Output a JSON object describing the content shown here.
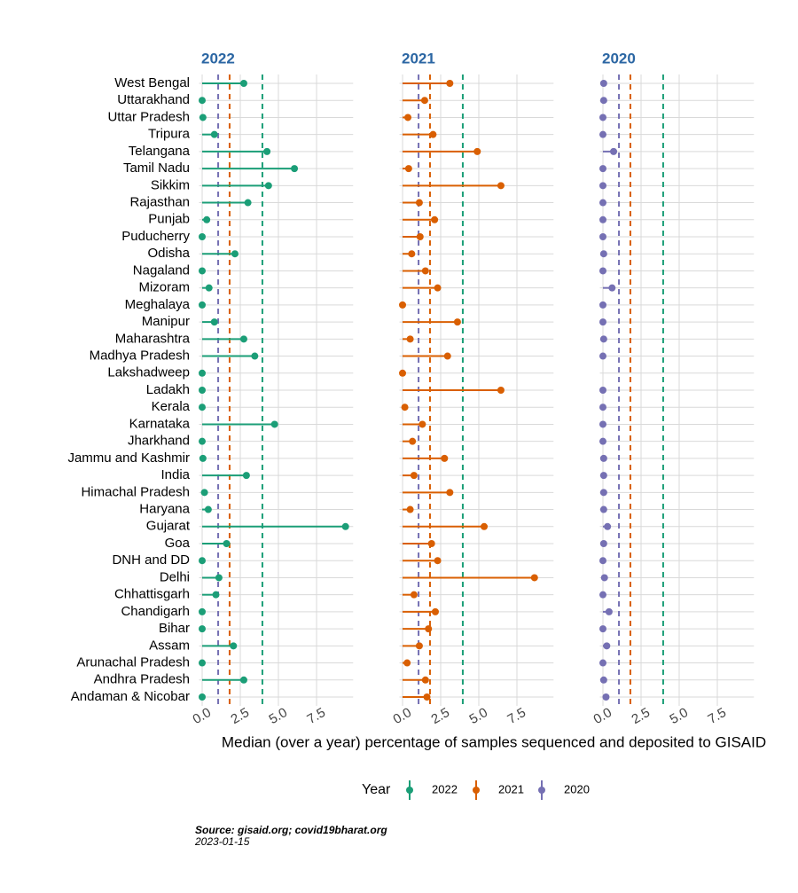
{
  "chart_data": {
    "type": "lollipop",
    "categories": [
      "West Bengal",
      "Uttarakhand",
      "Uttar Pradesh",
      "Tripura",
      "Telangana",
      "Tamil Nadu",
      "Sikkim",
      "Rajasthan",
      "Punjab",
      "Puducherry",
      "Odisha",
      "Nagaland",
      "Mizoram",
      "Meghalaya",
      "Manipur",
      "Maharashtra",
      "Madhya Pradesh",
      "Lakshadweep",
      "Ladakh",
      "Kerala",
      "Karnataka",
      "Jharkhand",
      "Jammu and Kashmir",
      "India",
      "Himachal Pradesh",
      "Haryana",
      "Gujarat",
      "Goa",
      "DNH and DD",
      "Delhi",
      "Chhattisgarh",
      "Chandigarh",
      "Bihar",
      "Assam",
      "Arunachal Pradesh",
      "Andhra Pradesh",
      "Andaman & Nicobar"
    ],
    "series": [
      {
        "name": "2022",
        "color": "#1b9e77",
        "reference_line": 3.95,
        "values": [
          2.73,
          0,
          0.05,
          0.8,
          4.25,
          6.05,
          4.35,
          3.0,
          0.3,
          0,
          2.15,
          0,
          0.45,
          0,
          0.8,
          2.73,
          3.45,
          0,
          0,
          0,
          4.75,
          0,
          0.05,
          2.9,
          0.15,
          0.4,
          9.4,
          1.6,
          0,
          1.1,
          0.9,
          0,
          0,
          2.05,
          0,
          2.73,
          0
        ]
      },
      {
        "name": "2021",
        "color": "#d95f02",
        "reference_line": 1.8,
        "values": [
          3.1,
          1.45,
          0.35,
          2.0,
          4.9,
          0.4,
          6.45,
          1.1,
          2.1,
          1.15,
          0.6,
          1.5,
          2.3,
          0,
          3.6,
          0.5,
          2.95,
          0,
          6.45,
          0.15,
          1.3,
          0.65,
          2.75,
          0.75,
          3.1,
          0.5,
          5.35,
          1.9,
          2.3,
          8.65,
          0.75,
          2.15,
          1.7,
          1.1,
          0.3,
          1.5,
          1.6
        ]
      },
      {
        "name": "2020",
        "color": "#7570b3",
        "reference_line": 1.05,
        "values": [
          0.05,
          0.05,
          0,
          0,
          0.7,
          0,
          0,
          0,
          0,
          0,
          0.05,
          0,
          0.6,
          0,
          0,
          0.05,
          0,
          null,
          0,
          0,
          0,
          0,
          0.05,
          0.05,
          0.05,
          0.05,
          0.3,
          0.05,
          0,
          0.1,
          0,
          0.4,
          0,
          0.25,
          0,
          0.05,
          0.2
        ]
      }
    ],
    "xlim": [
      -0.2,
      9.9
    ],
    "xticks": [
      {
        "value": 0,
        "label": "0.0"
      },
      2.5,
      {
        "value": 5,
        "label": "5.0"
      },
      7.5
    ],
    "xlabel": "Median (over a year) percentage of samples sequenced and deposited to GISAID",
    "legend_title": "Year",
    "grid": true,
    "source": "Source: gisaid.org; covid19bharat.org",
    "date": "2023-01-15"
  }
}
